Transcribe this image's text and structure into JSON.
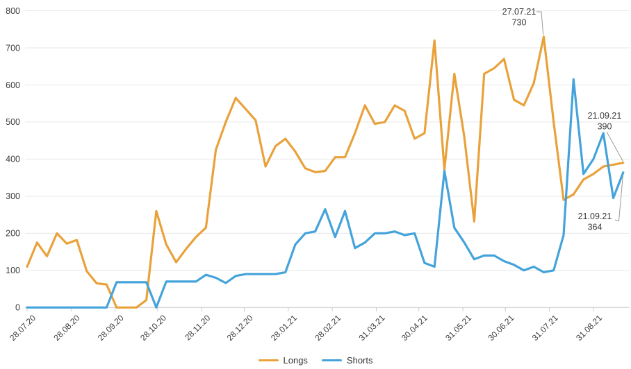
{
  "chart": {
    "y_axis_labels": [
      "0",
      "100",
      "200",
      "300",
      "400",
      "500",
      "600",
      "700",
      "800"
    ],
    "x_axis_labels": [
      "28.07.20",
      "28.08.20",
      "28.09.20",
      "28.10.20",
      "28.11.20",
      "28.12.20",
      "28.01.21",
      "28.02.21",
      "31.03.21",
      "30.04.21",
      "31.05.21",
      "30.06.21",
      "31.07.21",
      "31.08.21"
    ],
    "legend": [
      {
        "label": "Longs",
        "color": "#E9A23B"
      },
      {
        "label": "Shorts",
        "color": "#44A3DB"
      }
    ],
    "annotations": [
      {
        "date": "27.07.21",
        "value": "730",
        "series": "Longs"
      },
      {
        "date": "21.09.21",
        "value": "390",
        "series": "Longs"
      },
      {
        "date": "21.09.21",
        "value": "364",
        "series": "Shorts"
      }
    ],
    "colors": {
      "grid": "#e7e7e7",
      "axis": "#c9c9c9",
      "callout": "#9a9a9a",
      "text": "#3d3d3d"
    }
  },
  "chart_data": {
    "type": "line",
    "title": "",
    "xlabel": "",
    "ylabel": "",
    "ylim": [
      0,
      800
    ],
    "grid": true,
    "legend_position": "bottom",
    "x": [
      "28.07.20",
      "04.08.20",
      "11.08.20",
      "18.08.20",
      "25.08.20",
      "01.09.20",
      "08.09.20",
      "15.09.20",
      "22.09.20",
      "29.09.20",
      "06.10.20",
      "13.10.20",
      "20.10.20",
      "27.10.20",
      "03.11.20",
      "10.11.20",
      "17.11.20",
      "24.11.20",
      "01.12.20",
      "08.12.20",
      "15.12.20",
      "22.12.20",
      "29.12.20",
      "05.01.21",
      "12.01.21",
      "19.01.21",
      "26.01.21",
      "02.02.21",
      "09.02.21",
      "16.02.21",
      "23.02.21",
      "02.03.21",
      "09.03.21",
      "16.03.21",
      "23.03.21",
      "30.03.21",
      "06.04.21",
      "13.04.21",
      "20.04.21",
      "27.04.21",
      "04.05.21",
      "11.05.21",
      "18.05.21",
      "25.05.21",
      "01.06.21",
      "08.06.21",
      "15.06.21",
      "22.06.21",
      "29.06.21",
      "06.07.21",
      "13.07.21",
      "20.07.21",
      "27.07.21",
      "03.08.21",
      "10.08.21",
      "17.08.21",
      "24.08.21",
      "31.08.21",
      "07.09.21",
      "14.09.21",
      "21.09.21"
    ],
    "series": [
      {
        "name": "Longs",
        "color": "#E9A23B",
        "values": [
          110,
          175,
          138,
          200,
          172,
          182,
          98,
          65,
          62,
          0,
          0,
          0,
          20,
          260,
          170,
          122,
          158,
          190,
          215,
          425,
          500,
          565,
          535,
          505,
          380,
          435,
          455,
          420,
          375,
          365,
          368,
          405,
          405,
          470,
          545,
          495,
          500,
          545,
          530,
          455,
          470,
          720,
          372,
          630,
          460,
          232,
          630,
          645,
          670,
          560,
          545,
          605,
          730,
          500,
          290,
          305,
          345,
          360,
          380,
          385,
          390
        ]
      },
      {
        "name": "Shorts",
        "color": "#44A3DB",
        "values": [
          0,
          0,
          0,
          0,
          0,
          0,
          0,
          0,
          0,
          68,
          68,
          68,
          68,
          0,
          70,
          70,
          70,
          70,
          88,
          80,
          66,
          85,
          90,
          90,
          90,
          90,
          95,
          170,
          200,
          205,
          265,
          190,
          260,
          160,
          175,
          200,
          200,
          205,
          195,
          200,
          120,
          110,
          368,
          215,
          175,
          130,
          140,
          140,
          125,
          115,
          100,
          110,
          95,
          100,
          195,
          615,
          360,
          400,
          470,
          295,
          364
        ]
      }
    ]
  }
}
